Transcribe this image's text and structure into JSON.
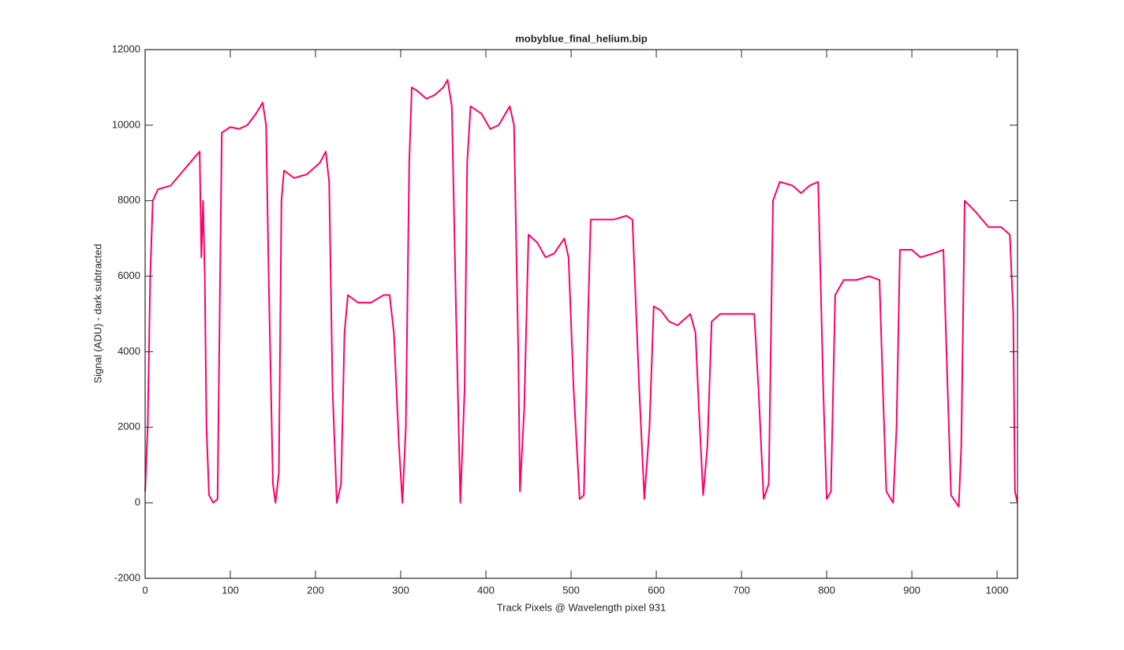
{
  "chart_data": {
    "type": "line",
    "title": "mobyblue_final_helium.bip",
    "xlabel": "Track Pixels @ Wavelength pixel 931",
    "ylabel": "Signal (ADU) - dark subtracted",
    "xlim": [
      0,
      1024
    ],
    "xticks": [
      0,
      100,
      200,
      300,
      400,
      500,
      600,
      700,
      800,
      900,
      1000
    ],
    "ylim": [
      -2000,
      12000
    ],
    "yticks": [
      -2000,
      0,
      2000,
      4000,
      6000,
      8000,
      10000,
      12000
    ],
    "x": [
      0,
      3,
      6,
      9,
      15,
      30,
      45,
      60,
      64,
      66,
      68,
      70,
      72,
      75,
      80,
      85,
      88,
      90,
      100,
      110,
      120,
      130,
      138,
      142,
      145,
      150,
      153,
      157,
      160,
      163,
      175,
      190,
      205,
      212,
      216,
      220,
      225,
      230,
      234,
      238,
      250,
      265,
      280,
      287,
      292,
      298,
      302,
      306,
      310,
      313,
      320,
      330,
      340,
      350,
      355,
      360,
      365,
      370,
      375,
      378,
      382,
      395,
      405,
      415,
      428,
      433,
      438,
      440,
      445,
      450,
      460,
      470,
      480,
      492,
      497,
      503,
      510,
      515,
      520,
      523,
      535,
      550,
      565,
      572,
      580,
      586,
      592,
      597,
      605,
      615,
      625,
      640,
      646,
      650,
      655,
      660,
      665,
      675,
      690,
      705,
      715,
      720,
      726,
      732,
      737,
      745,
      760,
      770,
      780,
      790,
      796,
      800,
      805,
      810,
      820,
      835,
      850,
      862,
      866,
      870,
      878,
      882,
      886,
      900,
      910,
      925,
      937,
      942,
      946,
      955,
      958,
      962,
      975,
      990,
      1005,
      1015,
      1019,
      1021,
      1024
    ],
    "series": [
      {
        "color": "#ff0066",
        "values": [
          300,
          2000,
          6000,
          8000,
          8300,
          8400,
          8800,
          9200,
          9300,
          6500,
          8000,
          6000,
          2000,
          200,
          0,
          100,
          6000,
          9800,
          9950,
          9900,
          10000,
          10300,
          10600,
          10000,
          6000,
          500,
          0,
          800,
          8000,
          8800,
          8600,
          8700,
          9000,
          9300,
          8500,
          3000,
          0,
          500,
          4500,
          5500,
          5300,
          5300,
          5500,
          5500,
          4500,
          1500,
          0,
          2000,
          9000,
          11000,
          10900,
          10700,
          10800,
          11000,
          11200,
          10500,
          5000,
          0,
          3000,
          9000,
          10500,
          10300,
          9900,
          10000,
          10500,
          10000,
          4000,
          300,
          2500,
          7100,
          6900,
          6500,
          6600,
          7000,
          6500,
          3000,
          100,
          200,
          5000,
          7500,
          7500,
          7500,
          7600,
          7500,
          3000,
          100,
          2000,
          5200,
          5100,
          4800,
          4700,
          5000,
          4500,
          2500,
          200,
          1500,
          4800,
          5000,
          5000,
          5000,
          5000,
          3000,
          100,
          500,
          8000,
          8500,
          8400,
          8200,
          8400,
          8500,
          3000,
          100,
          300,
          5500,
          5900,
          5900,
          6000,
          5900,
          3000,
          300,
          0,
          2000,
          6700,
          6700,
          6500,
          6600,
          6700,
          3000,
          200,
          -100,
          1500,
          8000,
          7700,
          7300,
          7300,
          7100,
          5000,
          300,
          0
        ]
      }
    ]
  }
}
